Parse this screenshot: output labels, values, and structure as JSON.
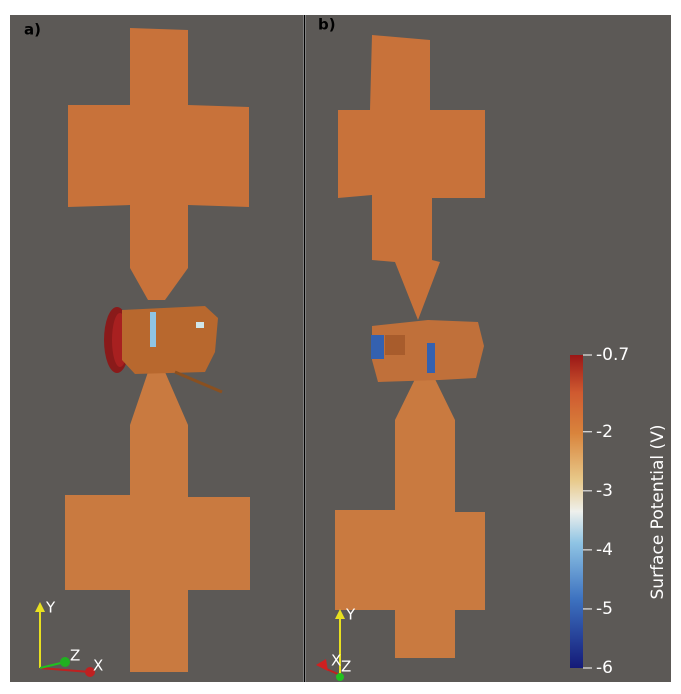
{
  "panels": [
    {
      "label": "a)",
      "axes": {
        "y": "Y",
        "z": "Z",
        "x": "X"
      }
    },
    {
      "label": "b)",
      "axes": {
        "y": "Y",
        "z": "Z",
        "x": "X"
      }
    }
  ],
  "colorbar": {
    "title": "Surface Potential (V)",
    "range": [
      -6,
      -0.7
    ],
    "ticks": [
      -0.7,
      -2,
      -3,
      -4,
      -5,
      -6
    ]
  }
}
